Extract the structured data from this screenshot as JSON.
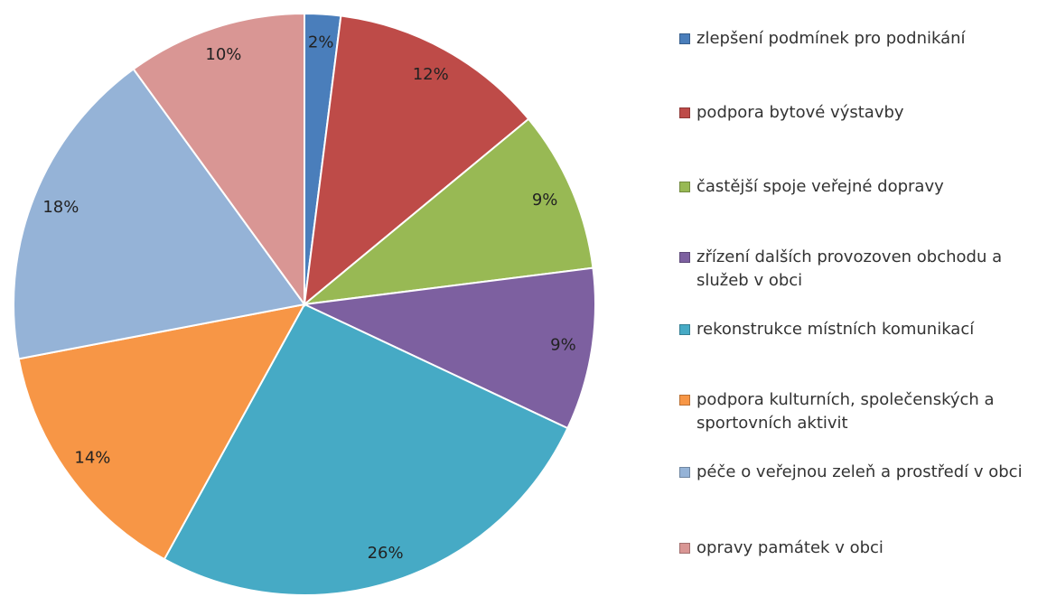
{
  "chart_data": {
    "type": "pie",
    "categories": [
      "zlepšení podmínek pro podnikání",
      "podpora bytové výstavby",
      "častější spoje veřejné dopravy",
      "zřízení dalších provozoven obchodu a služeb v obci",
      "rekonstrukce místních komunikací",
      "podpora kulturních, společenských a sportovních aktivit",
      "péče o veřejnou zeleň a prostředí v obci",
      "opravy památek v obci"
    ],
    "values": [
      2,
      12,
      9,
      9,
      26,
      14,
      18,
      10
    ],
    "value_labels": [
      "2%",
      "12%",
      "9%",
      "9%",
      "26%",
      "14%",
      "18%",
      "10%"
    ],
    "colors": [
      "#4a7ebb",
      "#be4b48",
      "#98b954",
      "#7d60a0",
      "#46aac5",
      "#f79646",
      "#95b3d7",
      "#d99694"
    ],
    "legend": "right"
  }
}
